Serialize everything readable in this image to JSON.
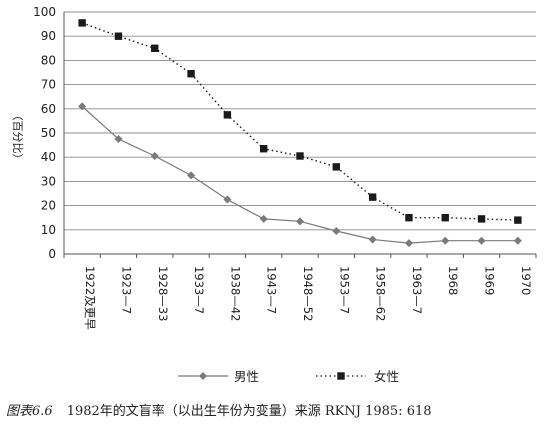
{
  "chart_data": {
    "type": "line",
    "categories": [
      "1922及更早",
      "1923—7",
      "1928—33",
      "1933—7",
      "1938—42",
      "1943—7",
      "1948—52",
      "1953—7",
      "1958—62",
      "1963—7",
      "1968",
      "1969",
      "1970"
    ],
    "series": [
      {
        "name": "男性",
        "values": [
          61,
          47.5,
          40.5,
          32.5,
          22.5,
          14.5,
          13.5,
          9.5,
          6,
          4.5,
          5.5,
          5.5,
          5.5
        ]
      },
      {
        "name": "女性",
        "values": [
          95.5,
          90,
          85,
          74.5,
          57.5,
          43.5,
          40.5,
          36,
          23.5,
          15,
          15,
          14.5,
          14
        ]
      }
    ],
    "ylabel": "（百分比）",
    "ylim": [
      0,
      100
    ],
    "yticks": [
      0,
      10,
      20,
      30,
      40,
      50,
      60,
      70,
      80,
      90,
      100
    ],
    "grid": "horizontal",
    "legend_placement": "bottom",
    "colors": {
      "male": "#7a7a7a",
      "female": "#1a1a1a",
      "grid": "#8c8c8c"
    },
    "markers": {
      "male": "diamond",
      "female": "square"
    },
    "line_styles": {
      "male": "solid",
      "female": "dotted"
    }
  },
  "caption": {
    "label": "图表6.6",
    "text": "1982年的文盲率（以出生年份为变量）来源 RKNJ 1985: 618"
  }
}
